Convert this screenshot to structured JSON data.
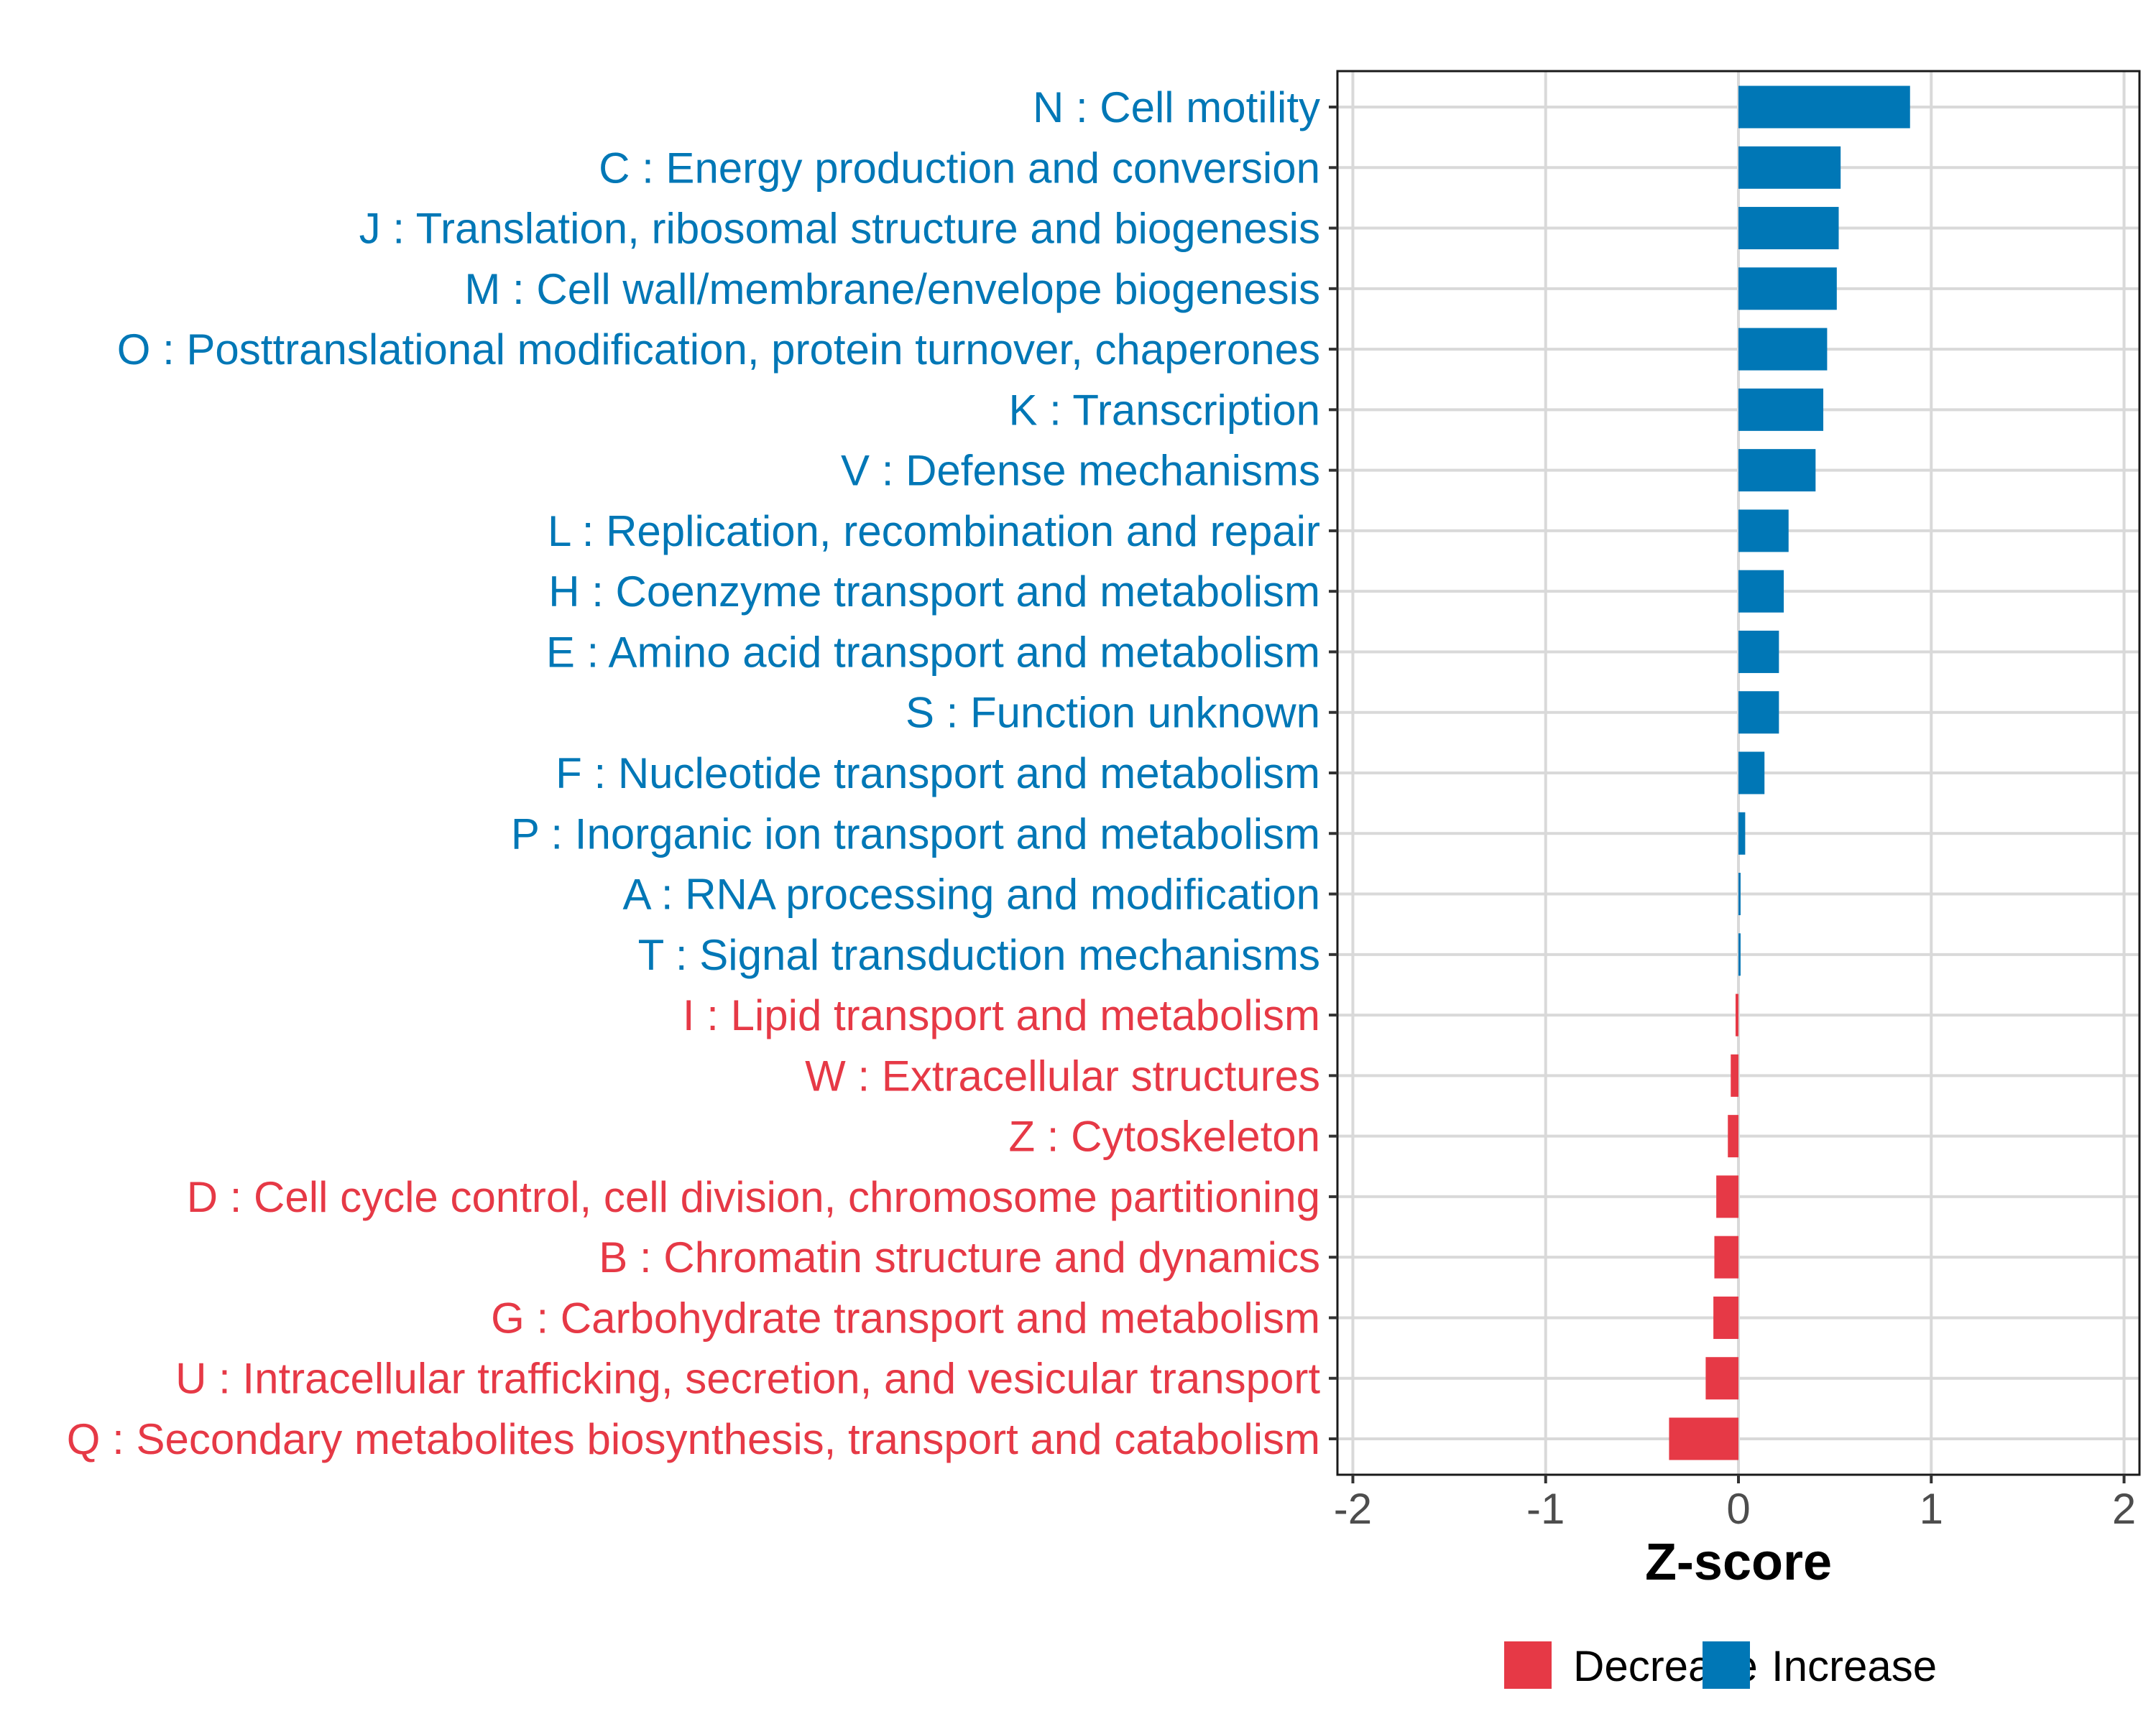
{
  "chart_data": {
    "type": "bar",
    "orientation": "horizontal",
    "title": "",
    "xlabel": "Z-score",
    "ylabel": "",
    "xlim": [
      -2.08,
      2.08
    ],
    "x_ticks": [
      -2,
      -1,
      0,
      1,
      2
    ],
    "x_tick_labels": [
      "-2",
      "-1",
      "0",
      "1",
      "2"
    ],
    "grid": true,
    "legend_position": "bottom",
    "legend": [
      {
        "name": "Decrease",
        "color": "#E63946"
      },
      {
        "name": "Increase",
        "color": "#0077B6"
      }
    ],
    "categories": [
      "N : Cell motility",
      "C : Energy production and conversion",
      "J : Translation, ribosomal structure and biogenesis",
      "M : Cell wall/membrane/envelope biogenesis",
      "O : Posttranslational modification, protein turnover, chaperones",
      "K : Transcription",
      "V : Defense mechanisms",
      "L : Replication, recombination and repair",
      "H : Coenzyme transport and metabolism",
      "E : Amino acid transport and metabolism",
      "S : Function unknown",
      "F : Nucleotide transport and metabolism",
      "P : Inorganic ion transport and metabolism",
      "A : RNA processing and modification",
      "T : Signal transduction mechanisms",
      "I : Lipid transport and metabolism",
      "W : Extracellular structures",
      "Z : Cytoskeleton",
      "D : Cell cycle control, cell division, chromosome partitioning",
      "B : Chromatin structure and dynamics",
      "G : Carbohydrate transport and metabolism",
      "U : Intracellular trafficking, secretion, and vesicular transport",
      "Q : Secondary metabolites biosynthesis, transport and catabolism"
    ],
    "values": [
      0.89,
      0.53,
      0.52,
      0.51,
      0.46,
      0.44,
      0.4,
      0.26,
      0.235,
      0.21,
      0.21,
      0.135,
      0.035,
      0.011,
      0.011,
      -0.015,
      -0.04,
      -0.055,
      -0.115,
      -0.125,
      -0.13,
      -0.17,
      -0.36
    ],
    "groups": [
      "Increase",
      "Increase",
      "Increase",
      "Increase",
      "Increase",
      "Increase",
      "Increase",
      "Increase",
      "Increase",
      "Increase",
      "Increase",
      "Increase",
      "Increase",
      "Increase",
      "Increase",
      "Decrease",
      "Decrease",
      "Decrease",
      "Decrease",
      "Decrease",
      "Decrease",
      "Decrease",
      "Decrease"
    ]
  }
}
